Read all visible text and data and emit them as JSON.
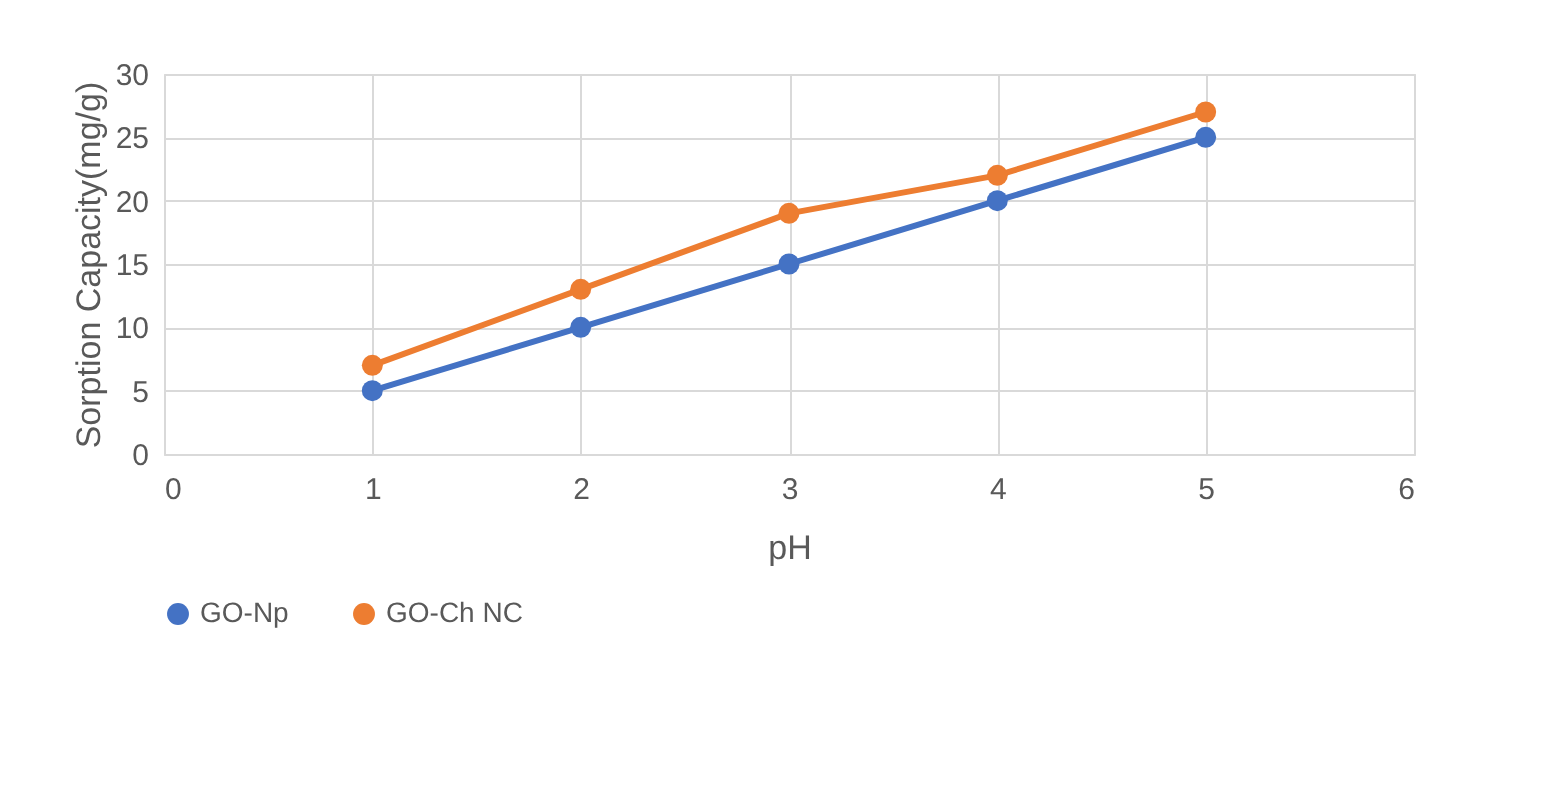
{
  "chart_data": {
    "type": "line",
    "xlabel": "pH",
    "ylabel": "Sorption Capacity(mg/g)",
    "x": [
      1,
      2,
      3,
      4,
      5
    ],
    "series": [
      {
        "name": "GO-Np",
        "color": "#4472c4",
        "values": [
          5,
          10,
          15,
          20,
          25
        ]
      },
      {
        "name": "GO-Ch NC",
        "color": "#ed7d31",
        "values": [
          7,
          13,
          19,
          22,
          27
        ]
      }
    ],
    "xlim": [
      0,
      6
    ],
    "xticks": [
      0,
      1,
      2,
      3,
      4,
      5,
      6
    ],
    "ylim": [
      0,
      30
    ],
    "yticks": [
      0,
      5,
      10,
      15,
      20,
      25,
      30
    ],
    "grid": true,
    "legend": "bottom",
    "marker": "circle",
    "line_style": "solid"
  }
}
